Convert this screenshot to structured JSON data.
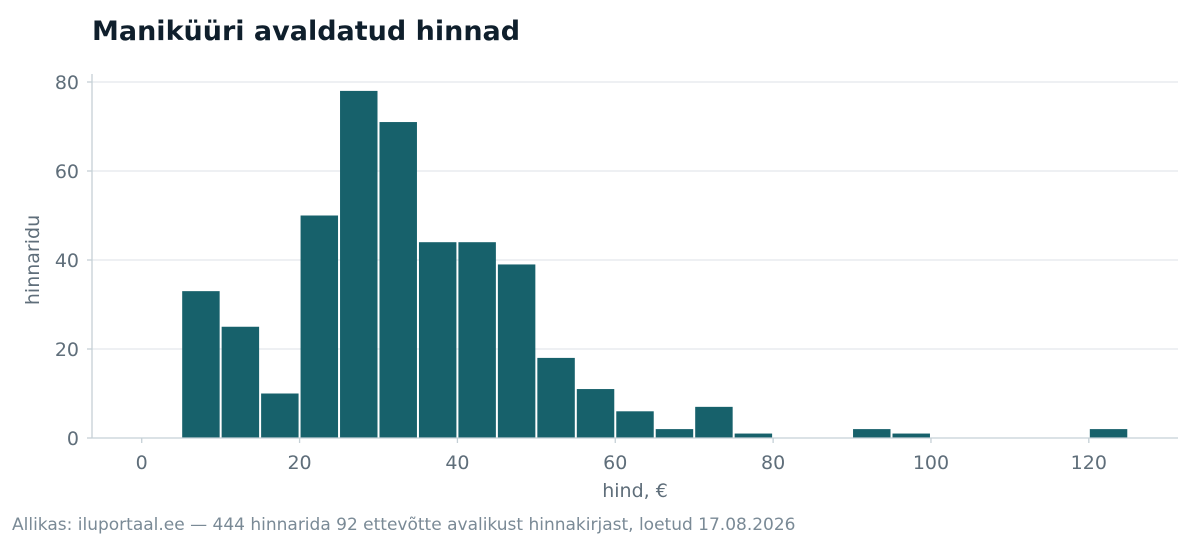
{
  "chart_data": {
    "type": "bar",
    "title": "Maniküüri avaldatud hinnad",
    "xlabel": "hind, €",
    "ylabel": "hinnaridu",
    "source": "Allikas: iluportaal.ee — 444 hinnarida 92 ettevõtte avalikust hinnakirjast, loetud 17.08.2026",
    "bins": [
      {
        "x0": 5,
        "x1": 10,
        "count": 33
      },
      {
        "x0": 10,
        "x1": 15,
        "count": 25
      },
      {
        "x0": 15,
        "x1": 20,
        "count": 10
      },
      {
        "x0": 20,
        "x1": 25,
        "count": 50
      },
      {
        "x0": 25,
        "x1": 30,
        "count": 78
      },
      {
        "x0": 30,
        "x1": 35,
        "count": 71
      },
      {
        "x0": 35,
        "x1": 40,
        "count": 44
      },
      {
        "x0": 40,
        "x1": 45,
        "count": 44
      },
      {
        "x0": 45,
        "x1": 50,
        "count": 39
      },
      {
        "x0": 50,
        "x1": 55,
        "count": 18
      },
      {
        "x0": 55,
        "x1": 60,
        "count": 11
      },
      {
        "x0": 60,
        "x1": 65,
        "count": 6
      },
      {
        "x0": 65,
        "x1": 70,
        "count": 2
      },
      {
        "x0": 70,
        "x1": 75,
        "count": 7
      },
      {
        "x0": 75,
        "x1": 80,
        "count": 1
      },
      {
        "x0": 80,
        "x1": 85,
        "count": 0
      },
      {
        "x0": 85,
        "x1": 90,
        "count": 0
      },
      {
        "x0": 90,
        "x1": 95,
        "count": 2
      },
      {
        "x0": 95,
        "x1": 100,
        "count": 1
      },
      {
        "x0": 100,
        "x1": 105,
        "count": 0
      },
      {
        "x0": 105,
        "x1": 110,
        "count": 0
      },
      {
        "x0": 110,
        "x1": 115,
        "count": 0
      },
      {
        "x0": 115,
        "x1": 120,
        "count": 0
      },
      {
        "x0": 120,
        "x1": 125,
        "count": 2
      }
    ],
    "xlim": [
      -6.3,
      131.3
    ],
    "ylim": [
      0,
      82
    ],
    "x_ticks": [
      0,
      20,
      40,
      60,
      80,
      100,
      120
    ],
    "y_ticks": [
      0,
      20,
      40,
      60,
      80
    ],
    "grid": "horizontal",
    "bar_color": "#17616b",
    "grid_color": "#e3e8ec",
    "axis_color": "#c5d0d6"
  }
}
